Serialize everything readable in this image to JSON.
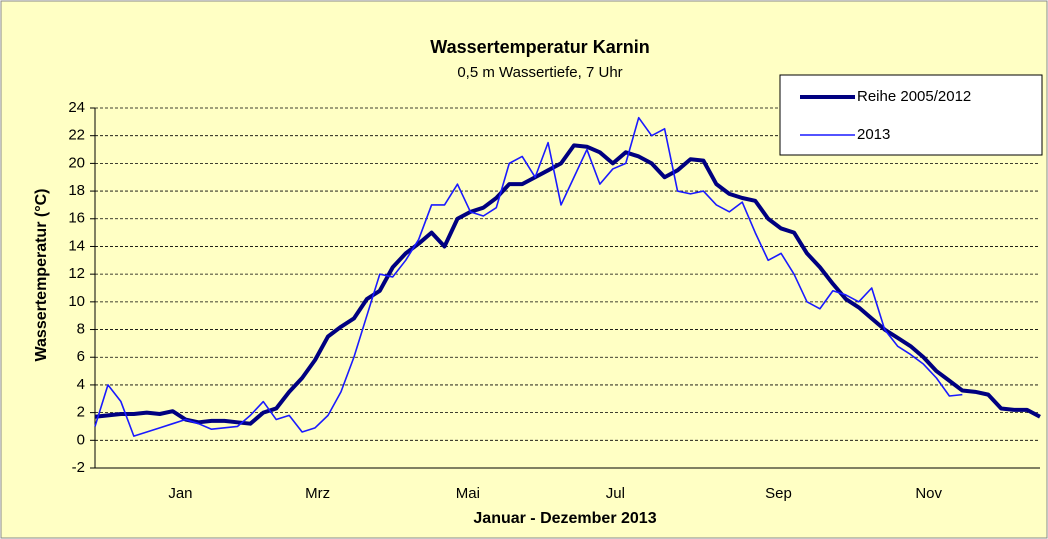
{
  "chart_data": {
    "type": "line",
    "title": "Wassertemperatur Karnin",
    "subtitle": "0,5 m Wassertiefe, 7 Uhr",
    "x_label": "Januar  - Dezember  2013",
    "y_label": "Wassertemperatur  (°C)",
    "x": [
      0,
      5,
      10,
      15,
      20,
      25,
      30,
      35,
      40,
      45,
      50,
      55,
      60,
      65,
      70,
      75,
      80,
      85,
      90,
      95,
      100,
      105,
      110,
      115,
      120,
      125,
      130,
      135,
      140,
      145,
      150,
      155,
      160,
      165,
      170,
      175,
      180,
      185,
      190,
      195,
      200,
      205,
      210,
      215,
      220,
      225,
      230,
      235,
      240,
      245,
      250,
      255,
      260,
      265,
      270,
      275,
      280,
      285,
      290,
      295,
      300,
      305,
      310,
      315,
      320,
      325,
      330,
      335,
      340,
      345,
      350,
      355,
      360,
      365
    ],
    "xlim": [
      0,
      365
    ],
    "xticks": [
      {
        "value": 33,
        "label": "Jan"
      },
      {
        "value": 86,
        "label": "Mrz"
      },
      {
        "value": 144,
        "label": "Mai"
      },
      {
        "value": 201,
        "label": "Jul"
      },
      {
        "value": 264,
        "label": "Sep"
      },
      {
        "value": 322,
        "label": "Nov"
      }
    ],
    "ylim": [
      -2,
      24
    ],
    "yticks": [
      -2,
      0,
      2,
      4,
      6,
      8,
      10,
      12,
      14,
      16,
      18,
      20,
      22,
      24
    ],
    "grid": true,
    "legend": "top-right",
    "series": [
      {
        "name": "Reihe 2005/2012",
        "color": "#000080",
        "values": [
          1.7,
          1.8,
          1.9,
          1.9,
          2.0,
          1.9,
          2.1,
          1.5,
          1.3,
          1.4,
          1.4,
          1.3,
          1.2,
          2.0,
          2.3,
          3.5,
          4.5,
          5.8,
          7.5,
          8.2,
          8.8,
          10.2,
          10.8,
          12.5,
          13.5,
          14.2,
          15.0,
          14.0,
          16.0,
          16.5,
          16.8,
          17.5,
          18.5,
          18.5,
          19.0,
          19.5,
          20.0,
          21.3,
          21.2,
          20.8,
          20.0,
          20.8,
          20.5,
          20.0,
          19.0,
          19.5,
          20.3,
          20.2,
          18.5,
          17.8,
          17.5,
          17.3,
          16.0,
          15.3,
          15.0,
          13.5,
          12.5,
          11.3,
          10.2,
          9.6,
          8.8,
          8.0,
          7.4,
          6.8,
          6.0,
          5.0,
          4.3,
          3.6,
          3.5,
          3.3,
          2.3,
          2.2,
          2.2,
          1.7
        ]
      },
      {
        "name": "2013",
        "color": "#1a1aff",
        "values": [
          1.0,
          4.0,
          2.8,
          0.3,
          0.6,
          0.9,
          1.2,
          1.5,
          1.2,
          0.8,
          0.9,
          1.0,
          1.8,
          2.8,
          1.5,
          1.8,
          0.6,
          0.9,
          1.8,
          3.5,
          6.0,
          9.0,
          12.0,
          11.8,
          13.0,
          14.5,
          17.0,
          17.0,
          18.5,
          16.5,
          16.2,
          16.8,
          20.0,
          20.5,
          19.0,
          21.5,
          17.0,
          19.0,
          21.0,
          18.5,
          19.6,
          20.0,
          23.3,
          22.0,
          22.5,
          18.0,
          17.8,
          18.0,
          17.0,
          16.5,
          17.2,
          15.0,
          13.0,
          13.5,
          12.0,
          10.0,
          9.5,
          10.8,
          10.5,
          10.0,
          11.0,
          8.0,
          6.8,
          6.2,
          5.5,
          4.5,
          3.2,
          3.3,
          null,
          null,
          null,
          null,
          null,
          null
        ]
      }
    ]
  }
}
